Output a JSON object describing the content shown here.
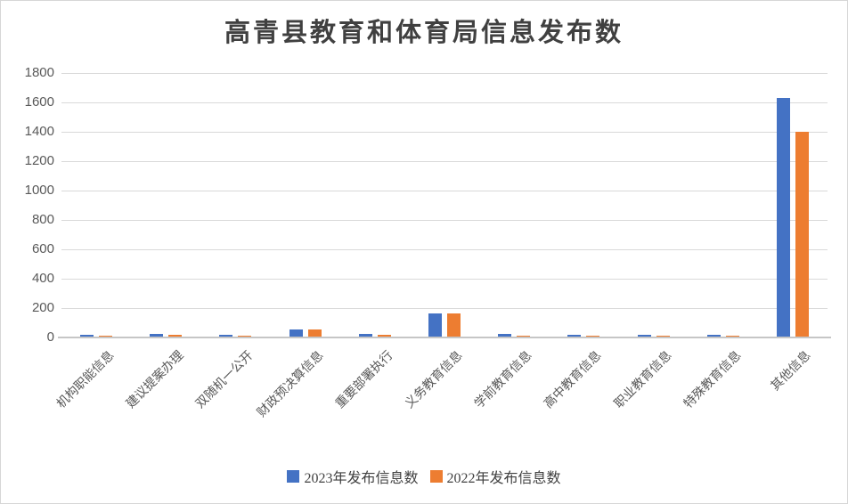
{
  "chart_data": {
    "type": "bar",
    "title": "高青县教育和体育局信息发布数",
    "categories": [
      "机构职能信息",
      "建议提案办理",
      "双随机一公开",
      "财政预决算信息",
      "重要部署执行",
      "义务教育信息",
      "学前教育信息",
      "高中教育信息",
      "职业教育信息",
      "特殊教育信息",
      "其他信息"
    ],
    "series": [
      {
        "name": "2023年发布信息数",
        "color": "#4472C4",
        "values": [
          20,
          22,
          18,
          52,
          26,
          165,
          26,
          16,
          16,
          18,
          1630
        ]
      },
      {
        "name": "2022年发布信息数",
        "color": "#ED7D31",
        "values": [
          10,
          20,
          12,
          52,
          20,
          165,
          14,
          14,
          12,
          12,
          1400
        ]
      }
    ],
    "xlabel": "",
    "ylabel": "",
    "ylim": [
      0,
      1800
    ],
    "yticks": [
      0,
      200,
      400,
      600,
      800,
      1000,
      1200,
      1400,
      1600,
      1800
    ],
    "grid": true,
    "legend_position": "bottom"
  },
  "colors": {
    "series_2023": "#4472C4",
    "series_2022": "#ED7D31",
    "gridline": "#D9D9D9",
    "axis_line": "#C6C6C6",
    "tick_label": "#595959",
    "title_text": "#404040",
    "legend_text": "#404040",
    "background": "#FFFFFF",
    "frame_border": "#D6D6D6"
  }
}
